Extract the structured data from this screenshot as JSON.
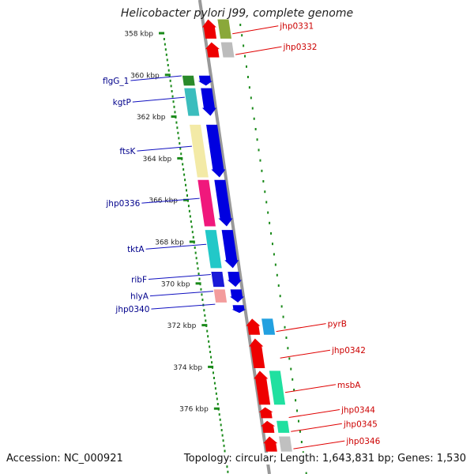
{
  "title": "Helicobacter pylori J99, complete genome",
  "accession": "Accession: NC_000921",
  "topology": "Topology: circular; Length: 1,643,831 bp; Genes: 1,530",
  "colors": {
    "forward": "#0000e0",
    "reverse": "#ee0000",
    "label_forward": "#00008b",
    "label_reverse": "#cc0000",
    "tick": "#1a8a1a",
    "backbone": "#999999"
  },
  "ticks": [
    "358 kbp",
    "360 kbp",
    "362 kbp",
    "364 kbp",
    "366 kbp",
    "368 kbp",
    "370 kbp",
    "372 kbp",
    "374 kbp",
    "376 kbp"
  ],
  "forward_genes": [
    {
      "label": "flgG_1",
      "start_kbp": 360.0,
      "end_kbp": 360.55
    },
    {
      "label": "kgtP",
      "start_kbp": 360.6,
      "end_kbp": 362.0
    },
    {
      "label": "ftsK",
      "start_kbp": 362.35,
      "end_kbp": 364.95
    },
    {
      "label": "jhp0336",
      "start_kbp": 365.0,
      "end_kbp": 367.3
    },
    {
      "label": "tktA",
      "start_kbp": 367.4,
      "end_kbp": 369.3
    },
    {
      "label": "ribF",
      "start_kbp": 369.4,
      "end_kbp": 370.2
    },
    {
      "label": "hlyA",
      "start_kbp": 370.25,
      "end_kbp": 370.95
    },
    {
      "label": "jhp0340",
      "start_kbp": 371.0,
      "end_kbp": 371.45
    }
  ],
  "reverse_genes": [
    {
      "label": "jhp0331",
      "start_kbp": 357.3,
      "end_kbp": 358.3
    },
    {
      "label": "jhp0332",
      "start_kbp": 358.4,
      "end_kbp": 359.2
    },
    {
      "label": "pyrB",
      "start_kbp": 371.65,
      "end_kbp": 372.5
    },
    {
      "label": "jhp0342",
      "start_kbp": 372.6,
      "end_kbp": 374.1
    },
    {
      "label": "msbA",
      "start_kbp": 374.15,
      "end_kbp": 375.85
    },
    {
      "label": "jhp0344",
      "start_kbp": 375.9,
      "end_kbp": 376.5
    },
    {
      "label": "jhp0345",
      "start_kbp": 376.55,
      "end_kbp": 377.2
    },
    {
      "label": "jhp0346",
      "start_kbp": 377.3,
      "end_kbp": 378.1
    }
  ]
}
